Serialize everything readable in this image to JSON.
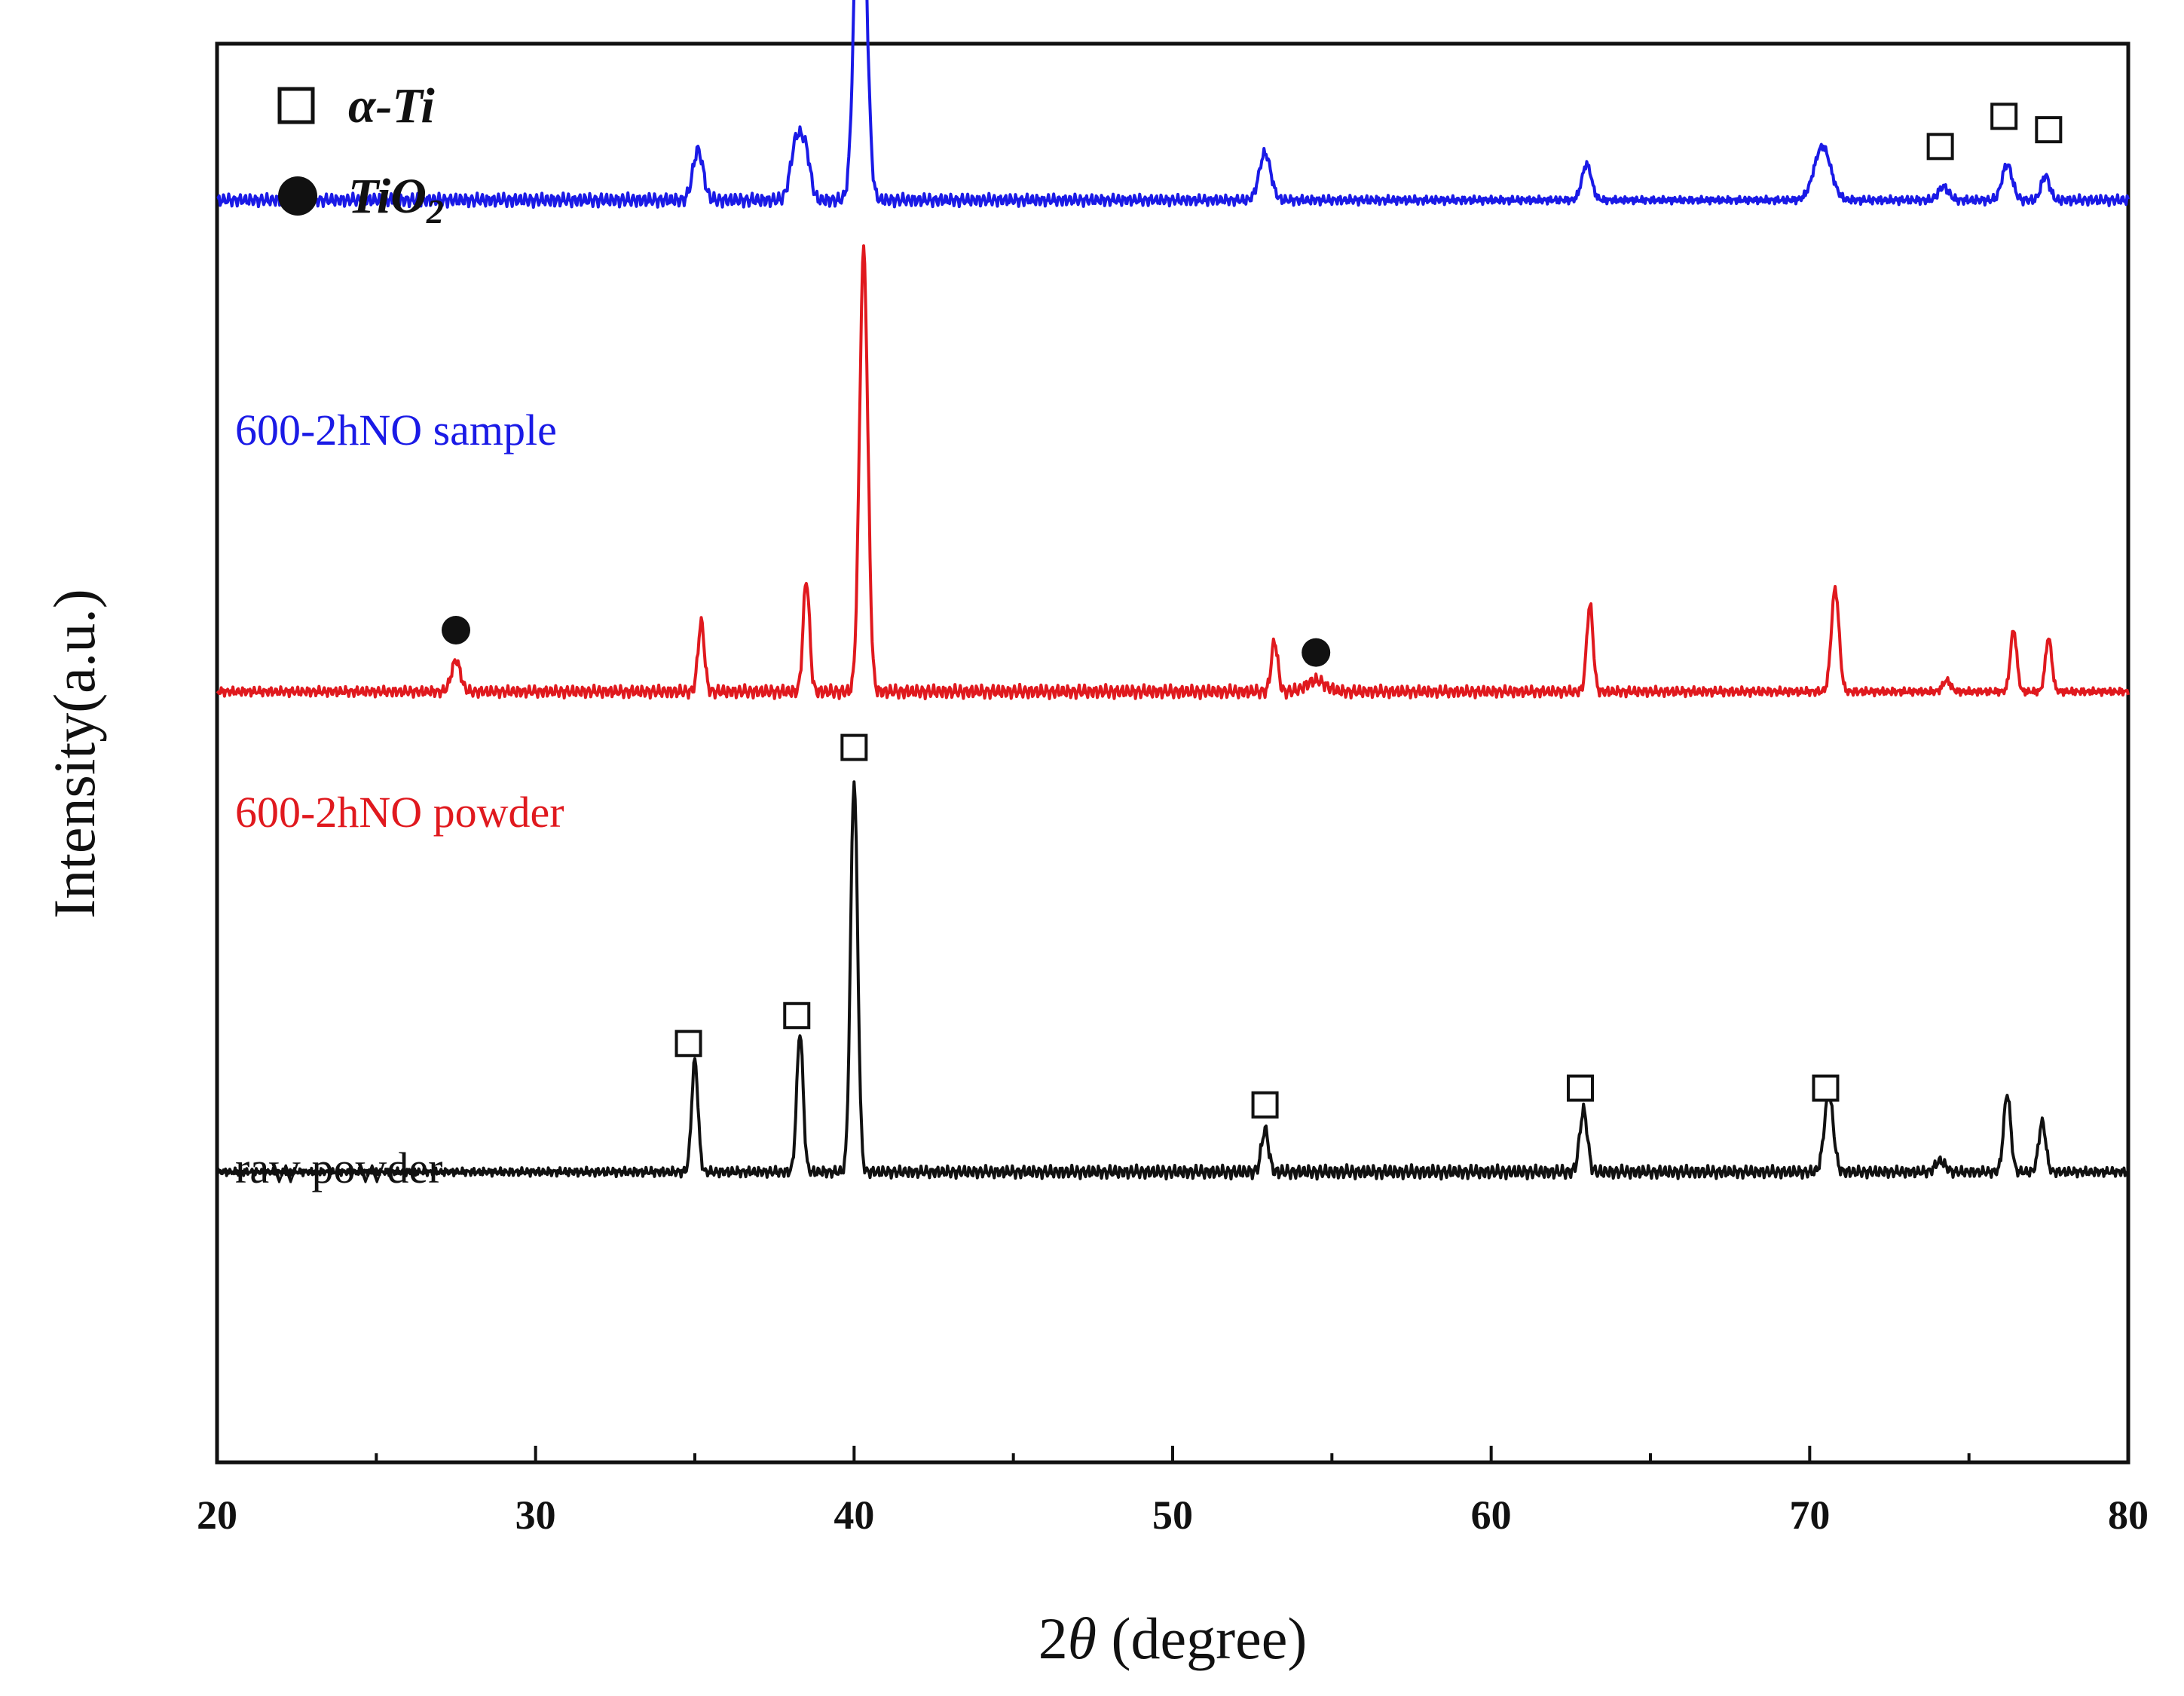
{
  "chart_data": {
    "type": "line",
    "xlabel_prefix": "2",
    "xlabel_theta": "θ",
    "xlabel_suffix": " (degree)",
    "ylabel": "Intensity(a.u.)",
    "xlim": [
      20,
      80
    ],
    "xticks": [
      "20",
      "30",
      "40",
      "50",
      "60",
      "70",
      "80"
    ],
    "grid": false,
    "legend": {
      "position": "top-left",
      "entries": [
        {
          "marker": "open-square",
          "label": "α-Ti"
        },
        {
          "marker": "filled-circle",
          "label_main": "TiO",
          "label_sub": "2"
        }
      ]
    },
    "series": [
      {
        "name": "600-2hNO sample",
        "color": "#1a1ae6",
        "baseline": 3.8,
        "peaks": [
          [
            35.1,
            0.45,
            0.16
          ],
          [
            38.2,
            0.55,
            0.18
          ],
          [
            38.5,
            0.35,
            0.14
          ],
          [
            40.2,
            3.75,
            0.17
          ],
          [
            52.9,
            0.42,
            0.18
          ],
          [
            63.0,
            0.32,
            0.15
          ],
          [
            70.4,
            0.48,
            0.26
          ],
          [
            74.2,
            0.12,
            0.16
          ],
          [
            76.2,
            0.32,
            0.16
          ],
          [
            77.4,
            0.22,
            0.13
          ]
        ],
        "markers": [
          {
            "x": 74.1,
            "y": 4.28,
            "type": "open-square"
          },
          {
            "x": 76.1,
            "y": 4.55,
            "type": "open-square"
          },
          {
            "x": 77.5,
            "y": 4.43,
            "type": "open-square"
          }
        ]
      },
      {
        "name": "600-2hNO powder",
        "color": "#e0191e",
        "baseline": -0.6,
        "peaks": [
          [
            27.5,
            0.28,
            0.14
          ],
          [
            35.2,
            0.62,
            0.1
          ],
          [
            38.5,
            1.0,
            0.1
          ],
          [
            40.3,
            3.95,
            0.13
          ],
          [
            53.2,
            0.45,
            0.1
          ],
          [
            54.5,
            0.1,
            0.3
          ],
          [
            63.1,
            0.78,
            0.1
          ],
          [
            70.8,
            0.92,
            0.12
          ],
          [
            74.3,
            0.1,
            0.12
          ],
          [
            76.4,
            0.55,
            0.1
          ],
          [
            77.5,
            0.48,
            0.1
          ]
        ],
        "markers": [
          {
            "x": 27.5,
            "y": -0.05,
            "type": "filled-circle"
          },
          {
            "x": 54.5,
            "y": -0.25,
            "type": "filled-circle"
          }
        ]
      },
      {
        "name": "raw powder",
        "color": "#111111",
        "baseline": -4.9,
        "peaks": [
          [
            35.0,
            1.0,
            0.1
          ],
          [
            38.3,
            1.25,
            0.1
          ],
          [
            40.0,
            3.5,
            0.11
          ],
          [
            52.9,
            0.38,
            0.11
          ],
          [
            62.9,
            0.55,
            0.12
          ],
          [
            70.6,
            0.7,
            0.14
          ],
          [
            74.1,
            0.1,
            0.15
          ],
          [
            76.2,
            0.7,
            0.11
          ],
          [
            77.3,
            0.45,
            0.11
          ]
        ],
        "markers": [
          {
            "x": 34.8,
            "y": -3.75,
            "type": "open-square"
          },
          {
            "x": 38.2,
            "y": -3.5,
            "type": "open-square"
          },
          {
            "x": 40.0,
            "y": -1.1,
            "type": "open-square"
          },
          {
            "x": 52.9,
            "y": -4.3,
            "type": "open-square"
          },
          {
            "x": 62.8,
            "y": -4.15,
            "type": "open-square"
          },
          {
            "x": 70.5,
            "y": -4.15,
            "type": "open-square"
          }
        ]
      }
    ]
  }
}
